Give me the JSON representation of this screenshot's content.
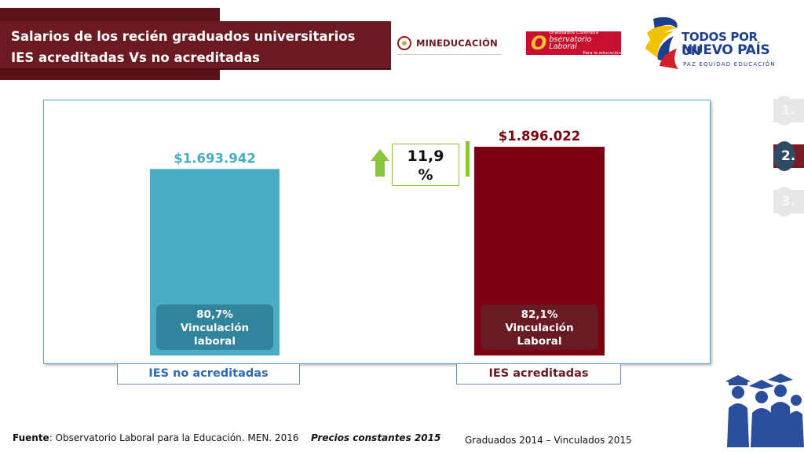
{
  "header": {
    "title_line1": "Salarios de los recién graduados universitarios",
    "title_line2": "IES acreditadas Vs no acreditadas"
  },
  "logos": {
    "mineducacion": "MINEDUCACIÓN",
    "observatorio_small": "Graduados Colombia",
    "observatorio_main": "bservatorio Laboral",
    "observatorio_sub": "Para la educación",
    "observatorio_initial": "O",
    "todos_line1": "TODOS POR UN",
    "todos_line2": "NUEVO PAÍS",
    "todos_line3": "PAZ  EQUIDAD  EDUCACIÓN"
  },
  "side_nav": [
    {
      "label": "1.",
      "active": false
    },
    {
      "label": "2.",
      "active": true
    },
    {
      "label": "3.",
      "active": false
    }
  ],
  "chart_data": {
    "type": "bar",
    "categories": [
      "IES no acreditadas",
      "IES acreditadas"
    ],
    "values": [
      1693942,
      1896022
    ],
    "data_labels": [
      "$1.693.942",
      "$1.896.022"
    ],
    "bar_colors": [
      "#4bacc6",
      "#7b0010"
    ],
    "inner_labels": [
      {
        "pct": "80,7%",
        "line1": "Vinculación",
        "line2": "laboral",
        "color": "#31849b"
      },
      {
        "pct": "82,1%",
        "line1": "Vinculación",
        "line2": "Laboral",
        "color": "#6a1a22"
      }
    ],
    "difference_label_line1": "11,9",
    "difference_label_line2": "%",
    "ylim": [
      0,
      2160000
    ],
    "grid": false
  },
  "footer": {
    "source_bold": "Fuente",
    "source_rest": ": Observatorio Laboral para la Educación. MEN. 2016",
    "precios": "Precios constantes  2015",
    "graduados": "Graduados 2014 – Vinculados 2015"
  },
  "colors": {
    "banner": "#6b1a22",
    "accent_blue": "#5b9bd5",
    "arrow_green": "#8cc63f"
  }
}
